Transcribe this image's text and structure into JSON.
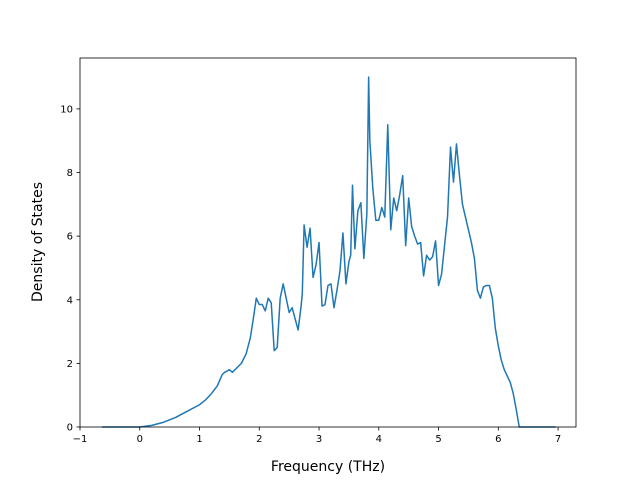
{
  "chart_data": {
    "type": "line",
    "title": "",
    "xlabel": "Frequency (THz)",
    "ylabel": "Density of States",
    "xlim": [
      -1,
      7.3
    ],
    "ylim": [
      0,
      11.6
    ],
    "xticks": [
      -1,
      0,
      1,
      2,
      3,
      4,
      5,
      6,
      7
    ],
    "yticks": [
      0,
      2,
      4,
      6,
      8,
      10
    ],
    "grid": false,
    "legend": "none",
    "line_color": "#1f77b4",
    "series": [
      {
        "x": [
          -0.62,
          -0.3,
          0.0,
          0.2,
          0.4,
          0.6,
          0.8,
          1.0,
          1.1,
          1.2,
          1.3,
          1.38,
          1.42,
          1.5,
          1.55,
          1.62,
          1.7,
          1.78,
          1.85,
          1.9,
          1.95,
          2.0,
          2.05,
          2.1,
          2.15,
          2.2,
          2.25,
          2.3,
          2.35,
          2.4,
          2.45,
          2.5,
          2.55,
          2.6,
          2.65,
          2.7,
          2.72,
          2.75,
          2.8,
          2.85,
          2.9,
          2.95,
          3.0,
          3.05,
          3.1,
          3.15,
          3.2,
          3.25,
          3.3,
          3.35,
          3.4,
          3.45,
          3.5,
          3.53,
          3.56,
          3.6,
          3.65,
          3.7,
          3.75,
          3.8,
          3.83,
          3.85,
          3.9,
          3.95,
          4.0,
          4.05,
          4.1,
          4.15,
          4.2,
          4.25,
          4.3,
          4.35,
          4.4,
          4.45,
          4.5,
          4.55,
          4.6,
          4.65,
          4.7,
          4.75,
          4.8,
          4.85,
          4.9,
          4.95,
          5.0,
          5.05,
          5.1,
          5.15,
          5.2,
          5.25,
          5.3,
          5.35,
          5.4,
          5.45,
          5.5,
          5.55,
          5.6,
          5.65,
          5.7,
          5.75,
          5.8,
          5.85,
          5.9,
          5.95,
          6.0,
          6.05,
          6.1,
          6.15,
          6.2,
          6.25,
          6.3,
          6.35,
          6.5,
          6.7,
          6.95
        ],
        "y": [
          0.0,
          0.0,
          0.0,
          0.05,
          0.15,
          0.3,
          0.5,
          0.7,
          0.85,
          1.05,
          1.3,
          1.65,
          1.72,
          1.8,
          1.72,
          1.85,
          2.0,
          2.3,
          2.8,
          3.4,
          4.05,
          3.85,
          3.85,
          3.65,
          4.05,
          3.9,
          2.4,
          2.5,
          4.05,
          4.5,
          4.05,
          3.6,
          3.75,
          3.4,
          3.05,
          3.8,
          4.2,
          6.35,
          5.65,
          6.25,
          4.7,
          5.1,
          5.8,
          3.8,
          3.85,
          4.45,
          4.5,
          3.75,
          4.3,
          4.9,
          6.1,
          4.5,
          5.2,
          5.4,
          7.6,
          5.6,
          6.8,
          7.05,
          5.3,
          6.7,
          11.0,
          9.0,
          7.5,
          6.5,
          6.5,
          6.9,
          6.6,
          9.5,
          6.2,
          7.2,
          6.8,
          7.3,
          7.9,
          5.7,
          7.2,
          6.3,
          6.0,
          5.75,
          5.8,
          4.75,
          5.4,
          5.25,
          5.35,
          5.85,
          4.45,
          4.8,
          5.7,
          6.6,
          8.8,
          7.7,
          8.9,
          7.9,
          7.0,
          6.6,
          6.2,
          5.8,
          5.3,
          4.3,
          4.05,
          4.4,
          4.45,
          4.45,
          4.05,
          3.1,
          2.55,
          2.1,
          1.8,
          1.6,
          1.4,
          1.05,
          0.55,
          0.0,
          0.0,
          0.0,
          0.0
        ]
      }
    ]
  }
}
